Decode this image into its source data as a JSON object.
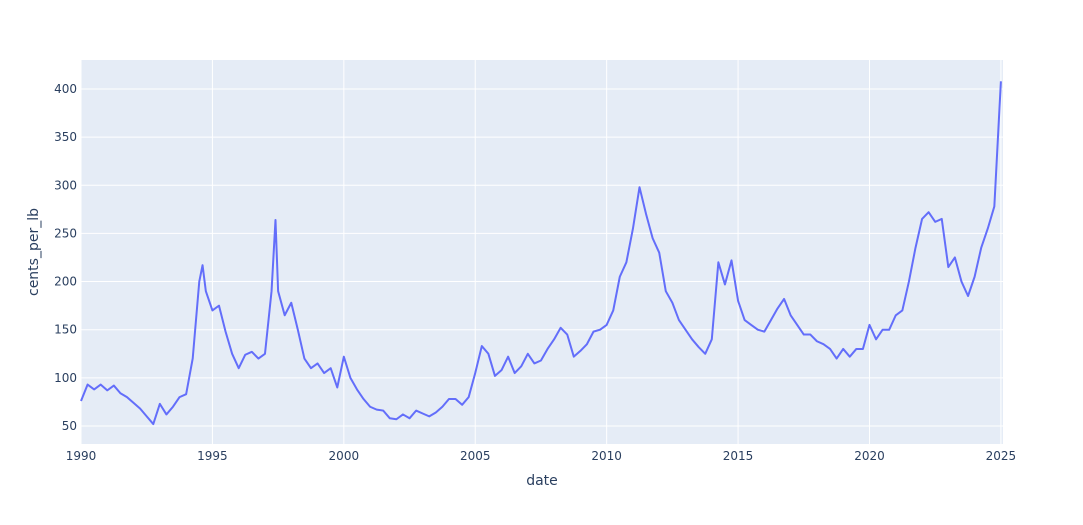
{
  "chart_data": {
    "type": "line",
    "x_label": "date",
    "y_label": "cents_per_lb",
    "xlim": [
      1990,
      2025.08
    ],
    "ylim": [
      31.3,
      430.1
    ],
    "xticks": [
      1990,
      1995,
      2000,
      2005,
      2010,
      2015,
      2020,
      2025
    ],
    "yticks": [
      50,
      100,
      150,
      200,
      250,
      300,
      350,
      400
    ],
    "grid": true,
    "series": [
      {
        "color": "#636efa",
        "x": [
          1990,
          1990.25,
          1990.5,
          1990.75,
          1991,
          1991.25,
          1991.5,
          1991.75,
          1992,
          1992.25,
          1992.5,
          1992.75,
          1993,
          1993.25,
          1993.5,
          1993.75,
          1994,
          1994.25,
          1994.5,
          1994.625,
          1994.75,
          1995,
          1995.25,
          1995.5,
          1995.75,
          1996,
          1996.25,
          1996.5,
          1996.75,
          1997,
          1997.25,
          1997.4,
          1997.5,
          1997.75,
          1998,
          1998.25,
          1998.5,
          1998.75,
          1999,
          1999.25,
          1999.5,
          1999.75,
          2000,
          2000.25,
          2000.5,
          2000.75,
          2001,
          2001.25,
          2001.5,
          2001.75,
          2002,
          2002.25,
          2002.5,
          2002.75,
          2003,
          2003.25,
          2003.5,
          2003.75,
          2004,
          2004.25,
          2004.5,
          2004.75,
          2005,
          2005.25,
          2005.5,
          2005.75,
          2006,
          2006.25,
          2006.5,
          2006.75,
          2007,
          2007.25,
          2007.5,
          2007.75,
          2008,
          2008.25,
          2008.5,
          2008.75,
          2009,
          2009.25,
          2009.5,
          2009.75,
          2010,
          2010.25,
          2010.5,
          2010.75,
          2011,
          2011.25,
          2011.5,
          2011.75,
          2012,
          2012.25,
          2012.5,
          2012.75,
          2013,
          2013.25,
          2013.5,
          2013.75,
          2014,
          2014.25,
          2014.5,
          2014.75,
          2015,
          2015.25,
          2015.5,
          2015.75,
          2016,
          2016.25,
          2016.5,
          2016.75,
          2017,
          2017.25,
          2017.5,
          2017.75,
          2018,
          2018.25,
          2018.5,
          2018.75,
          2019,
          2019.25,
          2019.5,
          2019.75,
          2020,
          2020.25,
          2020.5,
          2020.75,
          2021,
          2021.25,
          2021.5,
          2021.75,
          2022,
          2022.25,
          2022.5,
          2022.75,
          2023,
          2023.25,
          2023.5,
          2023.75,
          2024,
          2024.25,
          2024.5,
          2024.75,
          2025
        ],
        "values": [
          76,
          93,
          88,
          93,
          87,
          92,
          84,
          80,
          74,
          68,
          60,
          52,
          73,
          62,
          70,
          80,
          83,
          120,
          200,
          217,
          190,
          170,
          175,
          148,
          125,
          110,
          124,
          127,
          120,
          125,
          190,
          264,
          190,
          165,
          178,
          150,
          120,
          110,
          115,
          105,
          110,
          90,
          122,
          100,
          88,
          78,
          70,
          67,
          66,
          58,
          57,
          62,
          58,
          66,
          63,
          60,
          64,
          70,
          78,
          78,
          72,
          80,
          105,
          133,
          125,
          102,
          108,
          122,
          105,
          112,
          125,
          115,
          118,
          130,
          140,
          152,
          145,
          122,
          128,
          135,
          148,
          150,
          155,
          170,
          205,
          220,
          255,
          298,
          270,
          245,
          230,
          190,
          178,
          160,
          150,
          140,
          132,
          125,
          140,
          220,
          197,
          222,
          180,
          160,
          155,
          150,
          148,
          160,
          172,
          182,
          165,
          155,
          145,
          145,
          138,
          135,
          130,
          120,
          130,
          122,
          130,
          130,
          155,
          140,
          150,
          150,
          165,
          170,
          200,
          235,
          265,
          272,
          262,
          265,
          215,
          225,
          200,
          185,
          205,
          235,
          255,
          278,
          408
        ]
      }
    ]
  }
}
